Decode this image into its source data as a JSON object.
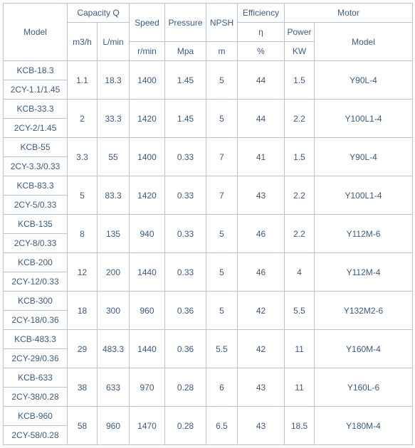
{
  "headers": {
    "model": "Model",
    "capacity": "Capacity Q",
    "m3h": "m3/h",
    "lmin": "L/min",
    "speed1": "Speed",
    "speed2": "r/min",
    "press1": "Pressure",
    "press2": "Mpa",
    "npsh1": "NPSH",
    "npsh2": "m",
    "eff1": "Efficiency",
    "eff2": "η",
    "eff3": "%",
    "motor": "Motor",
    "power1": "Power",
    "power2": "KW",
    "motormodel": "Model"
  },
  "rows": [
    {
      "m1": "KCB-18.3",
      "m2": "2CY-1.1/1.45",
      "m3h": "1.1",
      "lmin": "18.3",
      "speed": "1400",
      "press": "1.45",
      "npsh": "5",
      "eff": "44",
      "power": "1.5",
      "motor": "Y90L-4"
    },
    {
      "m1": "KCB-33.3",
      "m2": "2CY-2/1.45",
      "m3h": "2",
      "lmin": "33.3",
      "speed": "1420",
      "press": "1.45",
      "npsh": "5",
      "eff": "44",
      "power": "2.2",
      "motor": "Y100L1-4"
    },
    {
      "m1": "KCB-55",
      "m2": "2CY-3.3/0.33",
      "m3h": "3.3",
      "lmin": "55",
      "speed": "1400",
      "press": "0.33",
      "npsh": "7",
      "eff": "41",
      "power": "1.5",
      "motor": "Y90L-4"
    },
    {
      "m1": "KCB-83.3",
      "m2": "2CY-5/0.33",
      "m3h": "5",
      "lmin": "83.3",
      "speed": "1420",
      "press": "0.33",
      "npsh": "7",
      "eff": "43",
      "power": "2.2",
      "motor": "Y100L1-4"
    },
    {
      "m1": "KCB-135",
      "m2": "2CY-8/0.33",
      "m3h": "8",
      "lmin": "135",
      "speed": "940",
      "press": "0.33",
      "npsh": "5",
      "eff": "46",
      "power": "2.2",
      "motor": "Y112M-6"
    },
    {
      "m1": "KCB-200",
      "m2": "2CY-12/0.33",
      "m3h": "12",
      "lmin": "200",
      "speed": "1440",
      "press": "0.33",
      "npsh": "5",
      "eff": "46",
      "power": "4",
      "motor": "Y112M-4"
    },
    {
      "m1": "KCB-300",
      "m2": "2CY-18/0.36",
      "m3h": "18",
      "lmin": "300",
      "speed": "960",
      "press": "0.36",
      "npsh": "5",
      "eff": "42",
      "power": "5.5",
      "motor": "Y132M2-6"
    },
    {
      "m1": "KCB-483.3",
      "m2": "2CY-29/0.36",
      "m3h": "29",
      "lmin": "483.3",
      "speed": "1440",
      "press": "0.36",
      "npsh": "5.5",
      "eff": "42",
      "power": "11",
      "motor": "Y160M-4"
    },
    {
      "m1": "KCB-633",
      "m2": "2CY-38/0.28",
      "m3h": "38",
      "lmin": "633",
      "speed": "970",
      "press": "0.28",
      "npsh": "6",
      "eff": "43",
      "power": "11",
      "motor": "Y160L-6"
    },
    {
      "m1": "KCB-960",
      "m2": "2CY-58/0.28",
      "m3h": "58",
      "lmin": "960",
      "speed": "1470",
      "press": "0.28",
      "npsh": "6.5",
      "eff": "43",
      "power": "18.5",
      "motor": "Y180M-4"
    }
  ]
}
